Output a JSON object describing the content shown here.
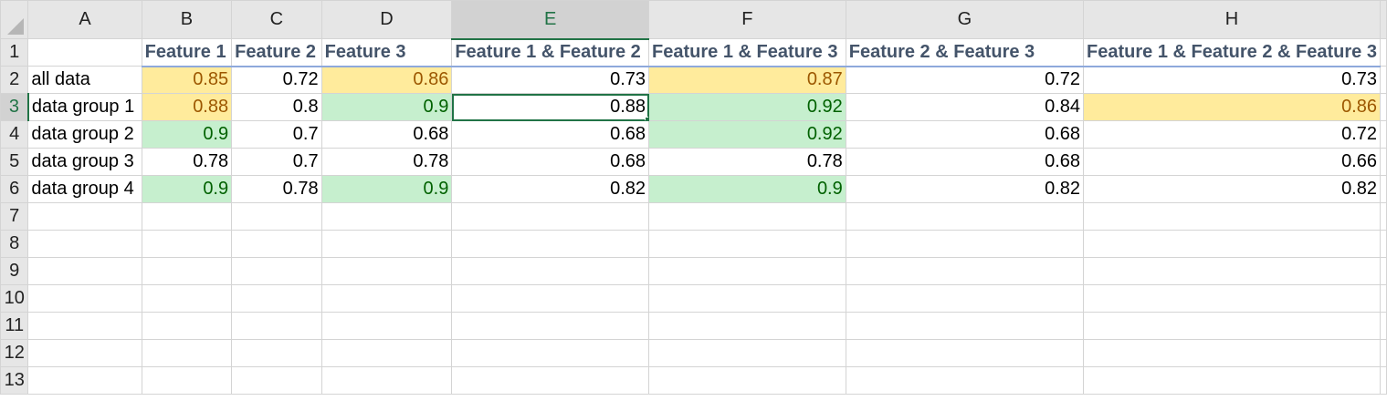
{
  "columns": [
    "A",
    "B",
    "C",
    "D",
    "E",
    "F",
    "G",
    "H"
  ],
  "active_column": "E",
  "active_row": 3,
  "rows": [
    {
      "n": "1",
      "cells": [
        "",
        "Feature 1",
        "Feature 2",
        "Feature 3",
        "Feature 1 & Feature 2",
        "Feature 1 & Feature 3",
        "Feature 2 & Feature 3",
        "Feature 1 & Feature 2 & Feature 3"
      ],
      "fmt": [
        "",
        "",
        "",
        "",
        "",
        "",
        "",
        ""
      ]
    },
    {
      "n": "2",
      "cells": [
        "all data",
        "0.85",
        "0.72",
        "0.86",
        "0.73",
        "0.87",
        "0.72",
        "0.73"
      ],
      "fmt": [
        "",
        "yellow",
        "",
        "yellow",
        "",
        "yellow",
        "",
        ""
      ]
    },
    {
      "n": "3",
      "cells": [
        "data group 1",
        "0.88",
        "0.8",
        "0.9",
        "0.88",
        "0.92",
        "0.84",
        "0.86"
      ],
      "fmt": [
        "",
        "yellow",
        "",
        "green",
        "",
        "green",
        "",
        "yellow"
      ]
    },
    {
      "n": "4",
      "cells": [
        "data group 2",
        "0.9",
        "0.7",
        "0.68",
        "0.68",
        "0.92",
        "0.68",
        "0.72"
      ],
      "fmt": [
        "",
        "green",
        "",
        "",
        "",
        "green",
        "",
        ""
      ]
    },
    {
      "n": "5",
      "cells": [
        "data group 3",
        "0.78",
        "0.7",
        "0.78",
        "0.68",
        "0.78",
        "0.68",
        "0.66"
      ],
      "fmt": [
        "",
        "",
        "",
        "",
        "",
        "",
        "",
        ""
      ]
    },
    {
      "n": "6",
      "cells": [
        "data group 4",
        "0.9",
        "0.78",
        "0.9",
        "0.82",
        "0.9",
        "0.82",
        "0.82"
      ],
      "fmt": [
        "",
        "green",
        "",
        "green",
        "",
        "green",
        "",
        ""
      ]
    },
    {
      "n": "7",
      "cells": [
        "",
        "",
        "",
        "",
        "",
        "",
        "",
        ""
      ],
      "fmt": [
        "",
        "",
        "",
        "",
        "",
        "",
        "",
        ""
      ]
    },
    {
      "n": "8",
      "cells": [
        "",
        "",
        "",
        "",
        "",
        "",
        "",
        ""
      ],
      "fmt": [
        "",
        "",
        "",
        "",
        "",
        "",
        "",
        ""
      ]
    },
    {
      "n": "9",
      "cells": [
        "",
        "",
        "",
        "",
        "",
        "",
        "",
        ""
      ],
      "fmt": [
        "",
        "",
        "",
        "",
        "",
        "",
        "",
        ""
      ]
    },
    {
      "n": "10",
      "cells": [
        "",
        "",
        "",
        "",
        "",
        "",
        "",
        ""
      ],
      "fmt": [
        "",
        "",
        "",
        "",
        "",
        "",
        "",
        ""
      ]
    },
    {
      "n": "11",
      "cells": [
        "",
        "",
        "",
        "",
        "",
        "",
        "",
        ""
      ],
      "fmt": [
        "",
        "",
        "",
        "",
        "",
        "",
        "",
        ""
      ]
    },
    {
      "n": "12",
      "cells": [
        "",
        "",
        "",
        "",
        "",
        "",
        "",
        ""
      ],
      "fmt": [
        "",
        "",
        "",
        "",
        "",
        "",
        "",
        ""
      ]
    },
    {
      "n": "13",
      "cells": [
        "",
        "",
        "",
        "",
        "",
        "",
        "",
        ""
      ],
      "fmt": [
        "",
        "",
        "",
        "",
        "",
        "",
        "",
        ""
      ]
    }
  ],
  "colors": {
    "header_text": "#44546a",
    "yellow_fill": "#ffeb9c",
    "yellow_text": "#9c5700",
    "green_fill": "#c6efce",
    "green_text": "#006100",
    "selection": "#217346"
  }
}
